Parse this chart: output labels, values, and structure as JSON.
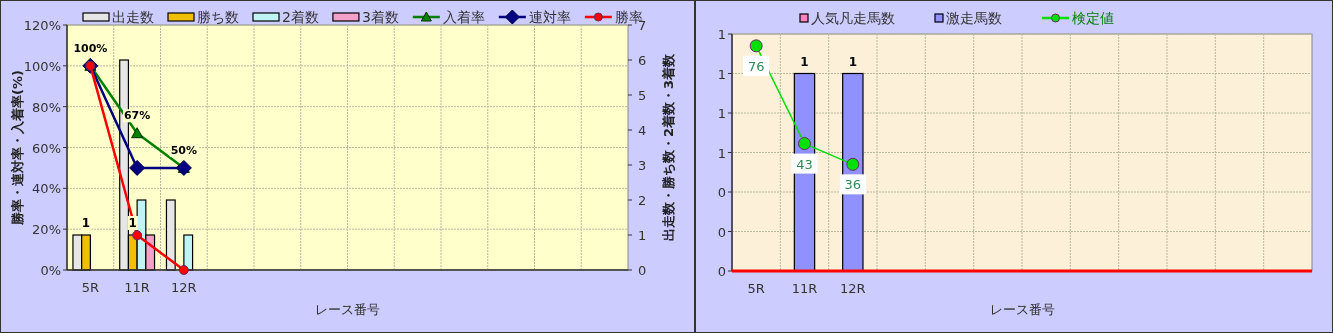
{
  "chart_data": [
    {
      "type": "bar",
      "categories": [
        "5R",
        "11R",
        "12R",
        null,
        null,
        null,
        null,
        null,
        null,
        null,
        null,
        null
      ],
      "xlabel": "レース番号",
      "ylabel": "勝率・連対率・入着率(%)",
      "y2label": "出走数・勝ち数・2着数・3着数",
      "ylim": [
        0,
        120
      ],
      "yticks": [
        {
          "value": 0,
          "label": "0%"
        },
        {
          "value": 20,
          "label": "20%"
        },
        {
          "value": 40,
          "label": "40%"
        },
        {
          "value": 60,
          "label": "60%"
        },
        {
          "value": 80,
          "label": "80%"
        },
        {
          "value": 100,
          "label": "100%"
        },
        {
          "value": 120,
          "label": "120%"
        }
      ],
      "y2lim": [
        0,
        7
      ],
      "y2ticks": [
        0,
        1,
        2,
        3,
        4,
        5,
        6,
        7
      ],
      "grid": true,
      "legend": "top",
      "series": [
        {
          "name": "出走数",
          "axis": "y2",
          "color": "#e6e6e6",
          "values": [
            1,
            6,
            2,
            null,
            null,
            null,
            null,
            null,
            null,
            null,
            null,
            null
          ]
        },
        {
          "name": "勝ち数",
          "axis": "y2",
          "color": "#f0c000",
          "values": [
            1,
            1,
            0,
            null,
            null,
            null,
            null,
            null,
            null,
            null,
            null,
            null
          ],
          "value_labels": [
            "1",
            "1",
            null,
            null,
            null,
            null,
            null,
            null,
            null,
            null,
            null,
            null
          ]
        },
        {
          "name": "2着数",
          "axis": "y2",
          "color": "#c0f4f4",
          "values": [
            0,
            2,
            1,
            null,
            null,
            null,
            null,
            null,
            null,
            null,
            null,
            null
          ]
        },
        {
          "name": "3着数",
          "axis": "y2",
          "color": "#f4a0c8",
          "values": [
            0,
            1,
            0,
            null,
            null,
            null,
            null,
            null,
            null,
            null,
            null,
            null
          ]
        },
        {
          "name": "入着率",
          "type": "line",
          "color": "#008000",
          "marker": "triangle",
          "values": [
            100,
            67,
            50,
            null,
            null,
            null,
            null,
            null,
            null,
            null,
            null,
            null
          ],
          "value_labels": [
            "100%",
            "67%",
            "50%",
            null,
            null,
            null,
            null,
            null,
            null,
            null,
            null,
            null
          ]
        },
        {
          "name": "連対率",
          "type": "line",
          "color": "#000080",
          "marker": "diamond",
          "values": [
            100,
            50,
            50,
            null,
            null,
            null,
            null,
            null,
            null,
            null,
            null,
            null
          ]
        },
        {
          "name": "勝率",
          "type": "line",
          "color": "#ff0000",
          "marker": "circle",
          "values": [
            100,
            17,
            0,
            null,
            null,
            null,
            null,
            null,
            null,
            null,
            null,
            null
          ]
        }
      ]
    },
    {
      "type": "bar",
      "categories": [
        "5R",
        "11R",
        "12R",
        null,
        null,
        null,
        null,
        null,
        null,
        null,
        null,
        null
      ],
      "xlabel": "レース番号",
      "ylim": [
        0,
        1.2
      ],
      "yticks": [
        {
          "value": 0,
          "label": "0"
        },
        {
          "value": 0.2,
          "label": "0"
        },
        {
          "value": 0.4,
          "label": "0"
        },
        {
          "value": 0.6,
          "label": "1"
        },
        {
          "value": 0.8,
          "label": "1"
        },
        {
          "value": 1,
          "label": "1"
        },
        {
          "value": 1.2,
          "label": "1"
        }
      ],
      "y2lim": [
        0,
        80
      ],
      "grid": true,
      "legend": "top",
      "stacked": true,
      "series": [
        {
          "name": "人気凡走馬数",
          "color": "#ff80c0",
          "values": [
            0,
            0,
            0,
            null,
            null,
            null,
            null,
            null,
            null,
            null,
            null,
            null
          ]
        },
        {
          "name": "激走馬数",
          "color": "#9090ff",
          "values": [
            0,
            1,
            1,
            null,
            null,
            null,
            null,
            null,
            null,
            null,
            null,
            null
          ],
          "value_labels": [
            null,
            "1",
            "1",
            null,
            null,
            null,
            null,
            null,
            null,
            null,
            null,
            null
          ]
        },
        {
          "name": "検定値",
          "type": "line",
          "axis": "y2",
          "color": "#00e000",
          "marker": "circle",
          "values": [
            76,
            43,
            36,
            null,
            null,
            null,
            null,
            null,
            null,
            null,
            null,
            null
          ],
          "value_labels": [
            "76",
            "43",
            "36",
            null,
            null,
            null,
            null,
            null,
            null,
            null,
            null,
            null
          ]
        }
      ]
    }
  ]
}
